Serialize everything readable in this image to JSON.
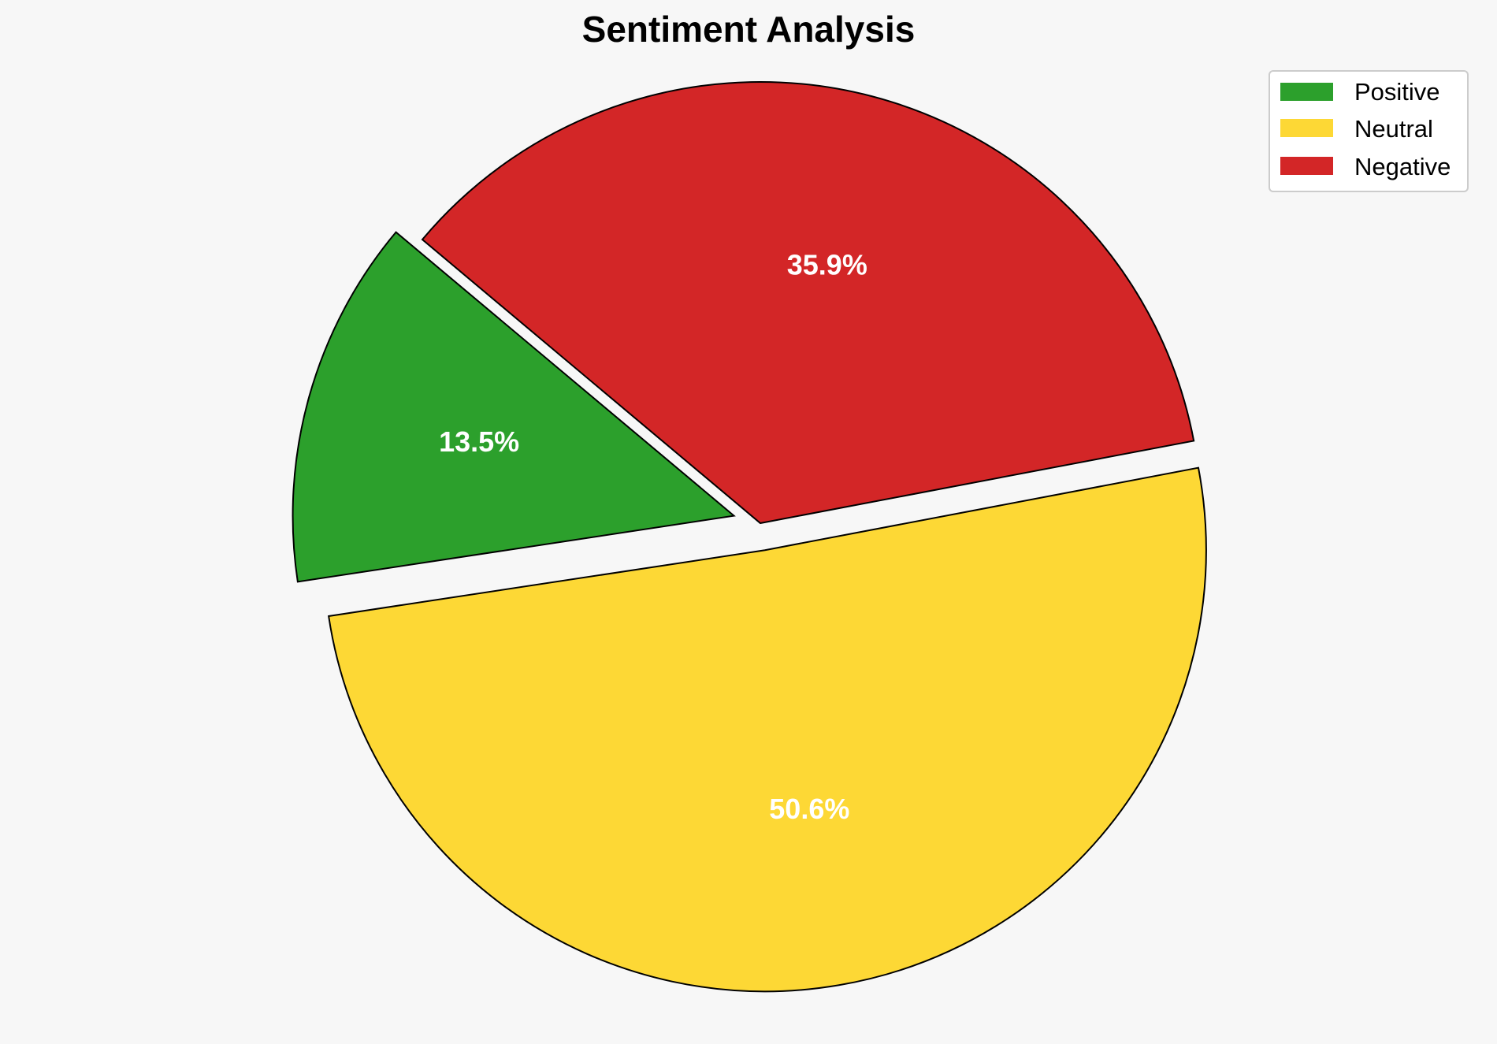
{
  "chart_data": {
    "type": "pie",
    "title": "Sentiment Analysis",
    "slices": [
      {
        "name": "Positive",
        "value": 13.5,
        "label": "13.5%",
        "color": "#2ca02c",
        "exploded": true
      },
      {
        "name": "Neutral",
        "value": 50.6,
        "label": "50.6%",
        "color": "#fdd835",
        "exploded": true
      },
      {
        "name": "Negative",
        "value": 35.9,
        "label": "35.9%",
        "color": "#d32627",
        "exploded": false
      }
    ],
    "start_angle_deg": 140,
    "direction": "counterclockwise",
    "legend": {
      "placement": "top-right",
      "entries": [
        "Positive",
        "Neutral",
        "Negative"
      ]
    },
    "edge_color": "#000000"
  }
}
